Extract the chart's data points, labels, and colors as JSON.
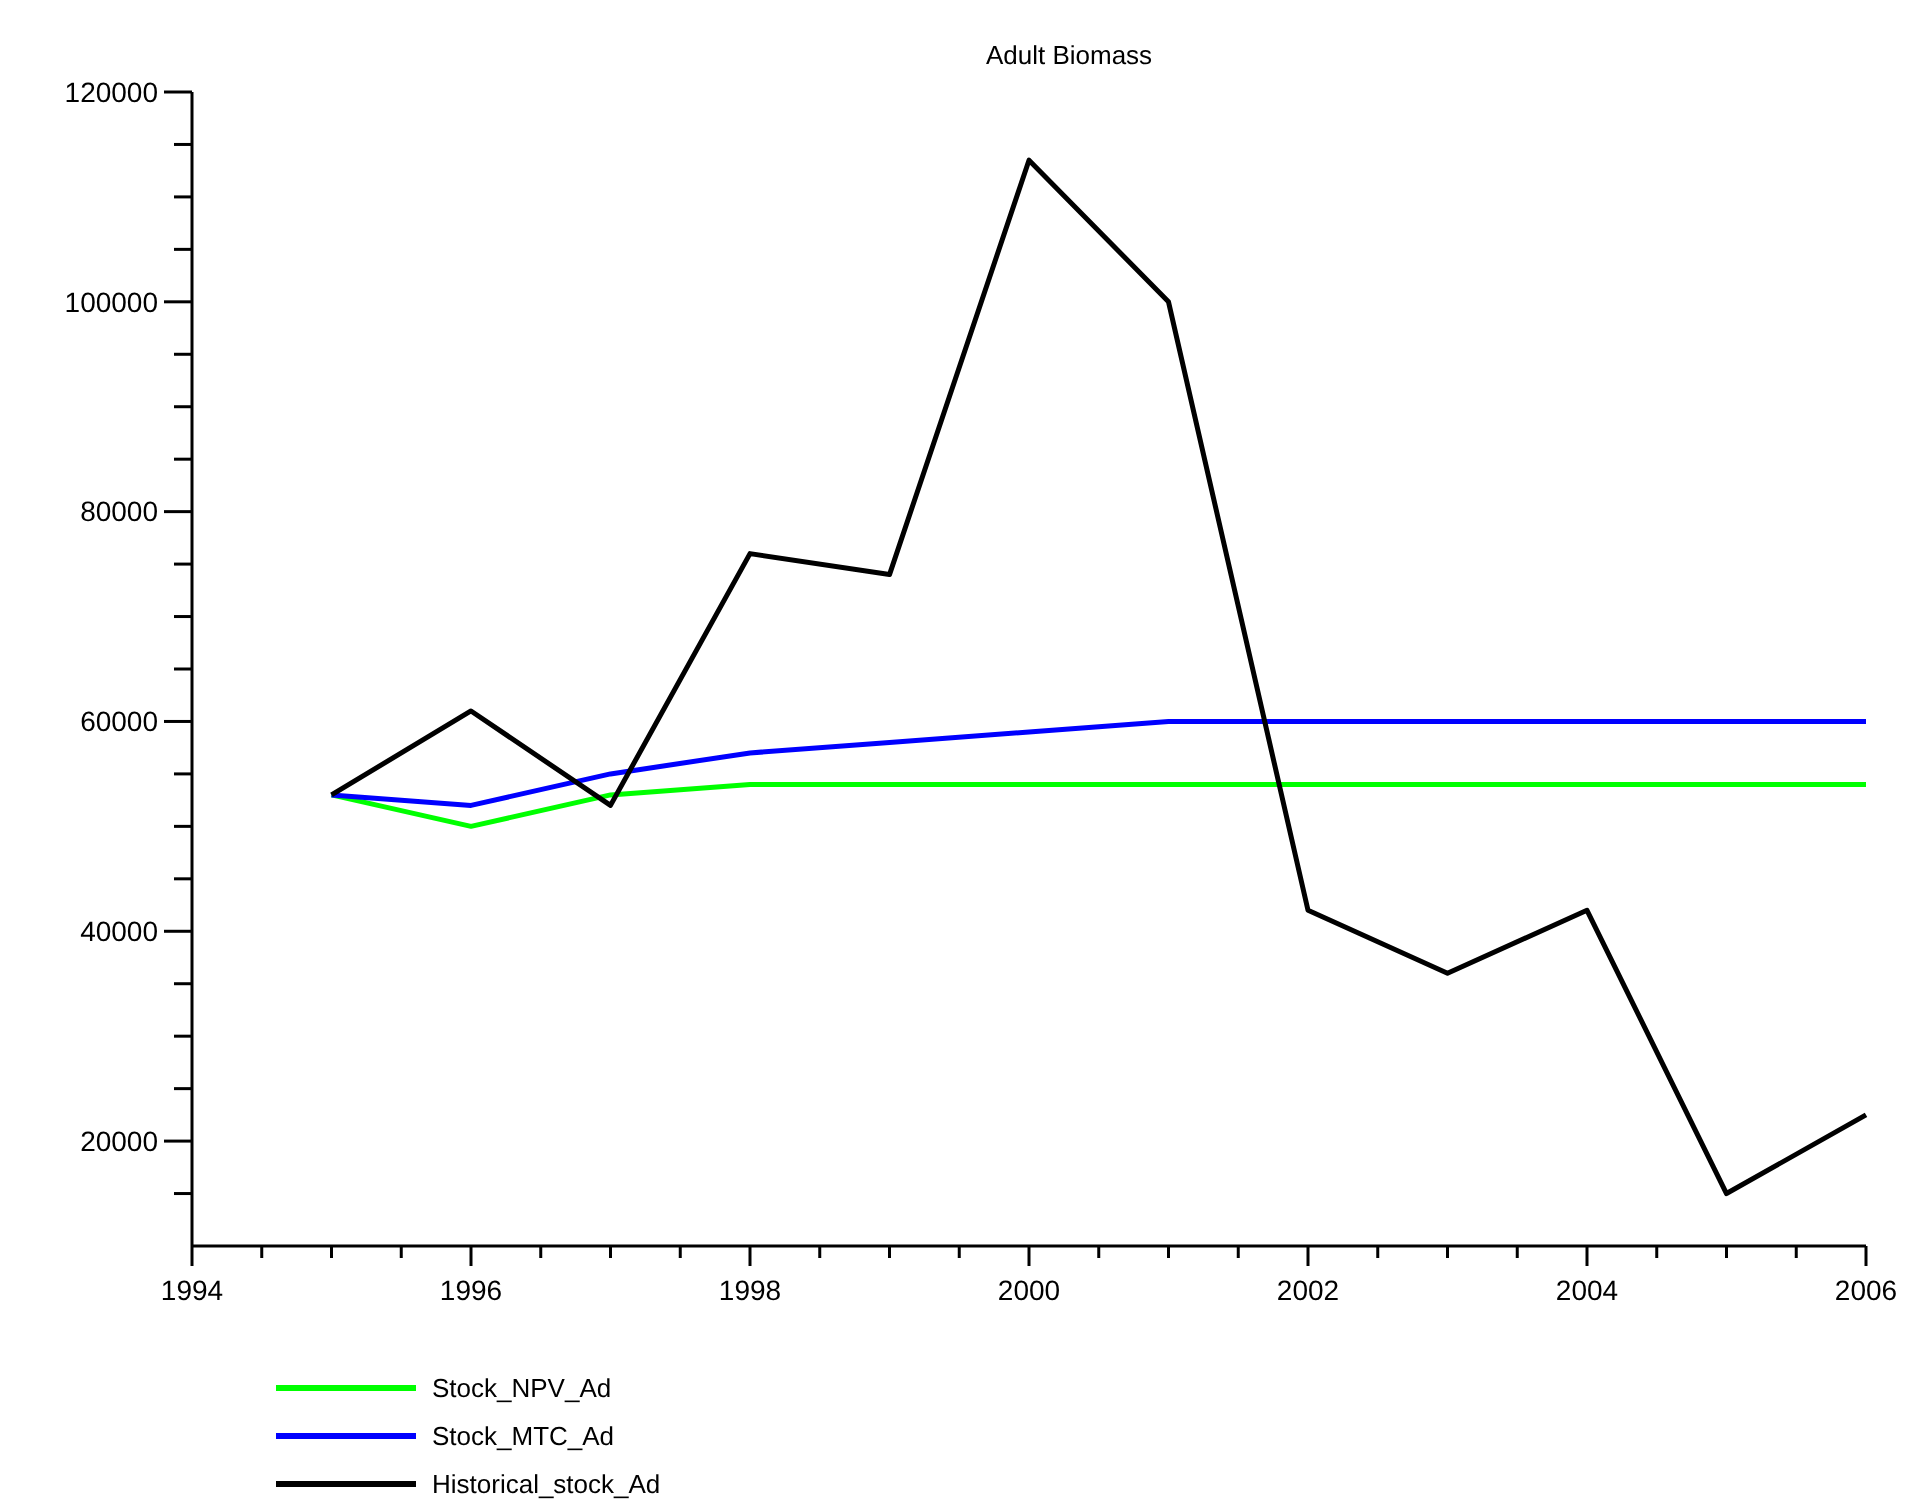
{
  "chart_data": {
    "type": "line",
    "title": "Adult Biomass",
    "x": [
      1995,
      1996,
      1997,
      1998,
      1999,
      2000,
      2001,
      2002,
      2003,
      2004,
      2005,
      2006
    ],
    "series": [
      {
        "name": "Stock_NPV_Ad",
        "color": "#00ff00",
        "values": [
          53000,
          50000,
          53000,
          54000,
          54000,
          54000,
          54000,
          54000,
          54000,
          54000,
          54000,
          54000
        ]
      },
      {
        "name": "Stock_MTC_Ad",
        "color": "#0000ff",
        "values": [
          53000,
          52000,
          55000,
          57000,
          58000,
          59000,
          60000,
          60000,
          60000,
          60000,
          60000,
          60000
        ]
      },
      {
        "name": "Historical_stock_Ad",
        "color": "#000000",
        "values": [
          53000,
          61000,
          52000,
          76000,
          74000,
          113500,
          100000,
          42000,
          36000,
          42000,
          15000,
          22500
        ]
      }
    ],
    "xlim": [
      1994,
      2006
    ],
    "xticks": [
      1994,
      {
        "value": 1994.5,
        "label": null
      },
      {
        "value": 1995,
        "label": null
      },
      {
        "value": 1995.5,
        "label": null
      },
      1996,
      {
        "value": 1996.5,
        "label": null
      },
      {
        "value": 1997,
        "label": null
      },
      {
        "value": 1997.5,
        "label": null
      },
      1998,
      {
        "value": 1998.5,
        "label": null
      },
      {
        "value": 1999,
        "label": null
      },
      {
        "value": 1999.5,
        "label": null
      },
      2000,
      {
        "value": 2000.5,
        "label": null
      },
      {
        "value": 2001,
        "label": null
      },
      {
        "value": 2001.5,
        "label": null
      },
      2002,
      {
        "value": 2002.5,
        "label": null
      },
      {
        "value": 2003,
        "label": null
      },
      {
        "value": 2003.5,
        "label": null
      },
      2004,
      {
        "value": 2004.5,
        "label": null
      },
      {
        "value": 2005,
        "label": null
      },
      {
        "value": 2005.5,
        "label": null
      },
      2006
    ],
    "ylim": [
      10000,
      120000
    ],
    "yticks": [
      {
        "value": 15000,
        "label": null
      },
      20000,
      {
        "value": 25000,
        "label": null
      },
      {
        "value": 30000,
        "label": null
      },
      {
        "value": 35000,
        "label": null
      },
      40000,
      {
        "value": 45000,
        "label": null
      },
      {
        "value": 50000,
        "label": null
      },
      {
        "value": 55000,
        "label": null
      },
      60000,
      {
        "value": 65000,
        "label": null
      },
      {
        "value": 70000,
        "label": null
      },
      {
        "value": 75000,
        "label": null
      },
      80000,
      {
        "value": 85000,
        "label": null
      },
      {
        "value": 90000,
        "label": null
      },
      {
        "value": 95000,
        "label": null
      },
      100000,
      {
        "value": 105000,
        "label": null
      },
      {
        "value": 110000,
        "label": null
      },
      {
        "value": 115000,
        "label": null
      },
      120000
    ],
    "grid": false,
    "legend": "bottom",
    "marker": "none",
    "line_style": "solid"
  }
}
